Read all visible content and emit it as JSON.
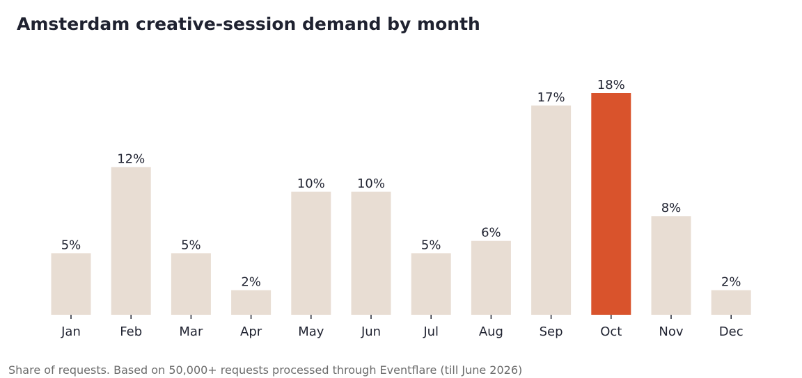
{
  "chart_data": {
    "type": "bar",
    "title": "Amsterdam creative-session demand by month",
    "categories": [
      "Jan",
      "Feb",
      "Mar",
      "Apr",
      "May",
      "Jun",
      "Jul",
      "Aug",
      "Sep",
      "Oct",
      "Nov",
      "Dec"
    ],
    "values": [
      5,
      12,
      5,
      2,
      10,
      10,
      5,
      6,
      17,
      18,
      8,
      2
    ],
    "value_labels": [
      "5%",
      "12%",
      "5%",
      "2%",
      "10%",
      "10%",
      "5%",
      "6%",
      "17%",
      "18%",
      "8%",
      "2%"
    ],
    "highlight_category": "Oct",
    "xlabel": "",
    "ylabel": "",
    "ylim": [
      0,
      20
    ],
    "grid": false,
    "note": "Share of requests. Based on 50,000+ requests processed through Eventflare (till June 2026)"
  },
  "colors": {
    "bar": "#e8ddd3",
    "highlight": "#d9532c",
    "label_text": "#1f2230",
    "tick": "#1f2230",
    "note_text": "#6b6b6b"
  }
}
